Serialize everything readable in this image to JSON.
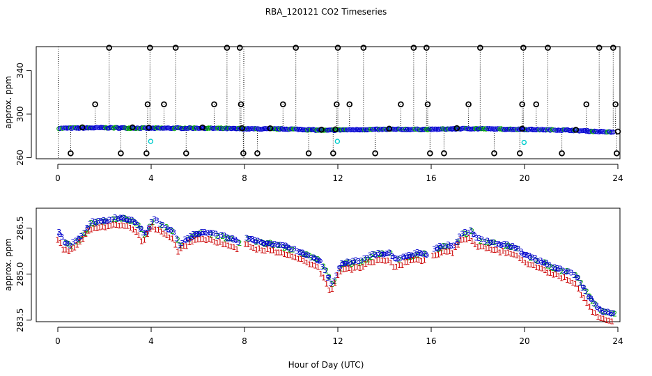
{
  "chart_data": [
    {
      "type": "scatter",
      "title": "RBA_120121  CO2 Timeseries",
      "xlabel": "",
      "ylabel": "approx. ppm",
      "xlim": [
        0,
        24
      ],
      "ylim": [
        259,
        362
      ],
      "x_ticks": [
        "0",
        "4",
        "8",
        "12",
        "16",
        "20",
        "24"
      ],
      "y_ticks": [
        "260",
        "300",
        "340"
      ],
      "baseline": [
        [
          0.05,
          287.0
        ],
        [
          2,
          287.5
        ],
        [
          4,
          287.0
        ],
        [
          6,
          287.2
        ],
        [
          8,
          286.5
        ],
        [
          10,
          286.3
        ],
        [
          11.5,
          285.0
        ],
        [
          12,
          285.5
        ],
        [
          14,
          286.0
        ],
        [
          16,
          286.0
        ],
        [
          17.5,
          286.7
        ],
        [
          20,
          286.0
        ],
        [
          22,
          285.2
        ],
        [
          23.5,
          283.6
        ],
        [
          23.8,
          283.4
        ]
      ],
      "spike_high_x": [
        2.2,
        3.95,
        5.05,
        7.25,
        7.8,
        10.2,
        12.0,
        13.1,
        15.25,
        15.8,
        18.1,
        19.95,
        21.0,
        23.2,
        23.8
      ],
      "spike_high_value": 361,
      "spike_mid_x": [
        1.6,
        3.85,
        4.55,
        6.7,
        7.85,
        9.65,
        11.95,
        12.5,
        14.7,
        15.85,
        17.6,
        19.9,
        20.5,
        22.65,
        23.9
      ],
      "spike_mid_value": 309,
      "spike_low_x": [
        0.55,
        2.7,
        3.8,
        5.5,
        7.95,
        8.55,
        10.75,
        11.8,
        13.6,
        15.95,
        16.55,
        18.7,
        19.8,
        21.6,
        23.95
      ],
      "spike_low_value": 264,
      "near_baseline_x": [
        1.05,
        3.2,
        3.9,
        6.2,
        7.9,
        9.1,
        11.3,
        11.9,
        14.2,
        17.1,
        19.9,
        22.2,
        24.0
      ],
      "cyan_points": [
        [
          3.98,
          275
        ],
        [
          11.98,
          275
        ],
        [
          19.98,
          274
        ]
      ]
    },
    {
      "type": "scatter",
      "title": "",
      "xlabel": "Hour of Day (UTC)",
      "ylabel": "approx. ppm",
      "xlim": [
        0,
        24
      ],
      "ylim": [
        283.45,
        287.15
      ],
      "x_ticks": [
        "0",
        "4",
        "8",
        "12",
        "16",
        "20",
        "24"
      ],
      "y_ticks": [
        "283.5",
        "285.0",
        "286.5"
      ],
      "series": [
        {
          "name": "1",
          "symbol": "1",
          "color": "#cc0000"
        },
        {
          "name": "2",
          "symbol": "2",
          "color": "#00aa00"
        },
        {
          "name": "3",
          "symbol": "3",
          "color": "#0000cc"
        },
        {
          "name": "o",
          "symbol": "o",
          "color": "#0000cc"
        }
      ],
      "profile": [
        [
          0.05,
          286.3
        ],
        [
          0.3,
          286.0
        ],
        [
          0.5,
          285.9
        ],
        [
          0.8,
          286.05
        ],
        [
          1.1,
          286.3
        ],
        [
          1.4,
          286.65
        ],
        [
          2.0,
          286.7
        ],
        [
          2.7,
          286.8
        ],
        [
          3.2,
          286.7
        ],
        [
          3.5,
          286.5
        ],
        [
          3.7,
          286.2
        ],
        [
          3.9,
          286.5
        ],
        [
          4.1,
          286.75
        ],
        [
          4.5,
          286.55
        ],
        [
          5.0,
          286.3
        ],
        [
          5.2,
          285.9
        ],
        [
          5.5,
          286.1
        ],
        [
          6.0,
          286.3
        ],
        [
          6.5,
          286.3
        ],
        [
          7.0,
          286.2
        ],
        [
          7.5,
          286.1
        ],
        [
          7.8,
          286.0
        ],
        [
          8.0,
          286.2
        ],
        [
          8.6,
          286.0
        ],
        [
          9.2,
          285.95
        ],
        [
          10.0,
          285.8
        ],
        [
          10.6,
          285.6
        ],
        [
          11.2,
          285.4
        ],
        [
          11.5,
          285.0
        ],
        [
          11.7,
          284.6
        ],
        [
          11.9,
          284.8
        ],
        [
          12.1,
          285.3
        ],
        [
          12.6,
          285.35
        ],
        [
          13.0,
          285.4
        ],
        [
          13.5,
          285.6
        ],
        [
          14.2,
          285.65
        ],
        [
          14.5,
          285.4
        ],
        [
          14.8,
          285.5
        ],
        [
          15.2,
          285.6
        ],
        [
          15.5,
          285.65
        ],
        [
          15.9,
          285.6
        ],
        [
          16.2,
          285.8
        ],
        [
          16.6,
          285.9
        ],
        [
          17.0,
          285.9
        ],
        [
          17.3,
          286.3
        ],
        [
          17.7,
          286.35
        ],
        [
          18.0,
          286.1
        ],
        [
          18.8,
          285.95
        ],
        [
          19.6,
          285.85
        ],
        [
          20.0,
          285.6
        ],
        [
          20.6,
          285.4
        ],
        [
          21.2,
          285.2
        ],
        [
          21.8,
          285.05
        ],
        [
          22.2,
          284.9
        ],
        [
          22.6,
          284.4
        ],
        [
          23.0,
          283.95
        ],
        [
          23.3,
          283.75
        ],
        [
          23.8,
          283.65
        ]
      ]
    }
  ]
}
